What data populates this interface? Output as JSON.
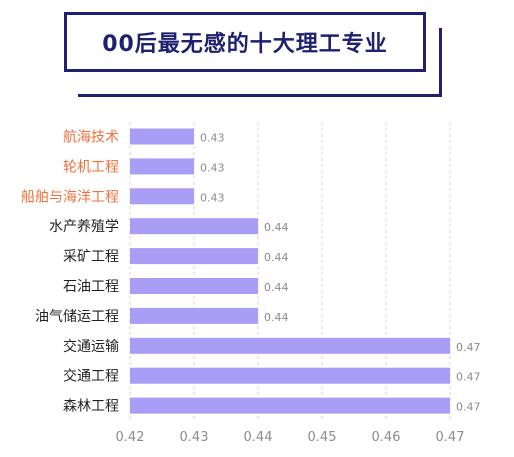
{
  "chart_data": {
    "type": "bar",
    "orientation": "horizontal",
    "title": "00后最无感的十大理工专业",
    "xlabel": "",
    "ylabel": "",
    "categories": [
      "航海技术",
      "轮机工程",
      "船舶与海洋工程",
      "水产养殖学",
      "采矿工程",
      "石油工程",
      "油气储运工程",
      "交通运输",
      "交通工程",
      "森林工程"
    ],
    "values": [
      0.43,
      0.43,
      0.43,
      0.44,
      0.44,
      0.44,
      0.44,
      0.47,
      0.47,
      0.47
    ],
    "data_labels": [
      "0.43",
      "0.43",
      "0.43",
      "0.44",
      "0.44",
      "0.44",
      "0.44",
      "0.47",
      "0.47",
      "0.47"
    ],
    "highlighted_categories": [
      "航海技术",
      "轮机工程",
      "船舶与海洋工程"
    ],
    "xlim": [
      0.42,
      0.47
    ],
    "x_ticks": [
      "0.42",
      "0.43",
      "0.44",
      "0.45",
      "0.46",
      "0.47"
    ],
    "grid": true,
    "colors": {
      "bar": "#a99df5",
      "highlight_label": "#f2703a",
      "normal_label": "#222222",
      "value_label": "#8c8c8c",
      "grid": "#d4d4d4",
      "title": "#1f2070"
    }
  }
}
